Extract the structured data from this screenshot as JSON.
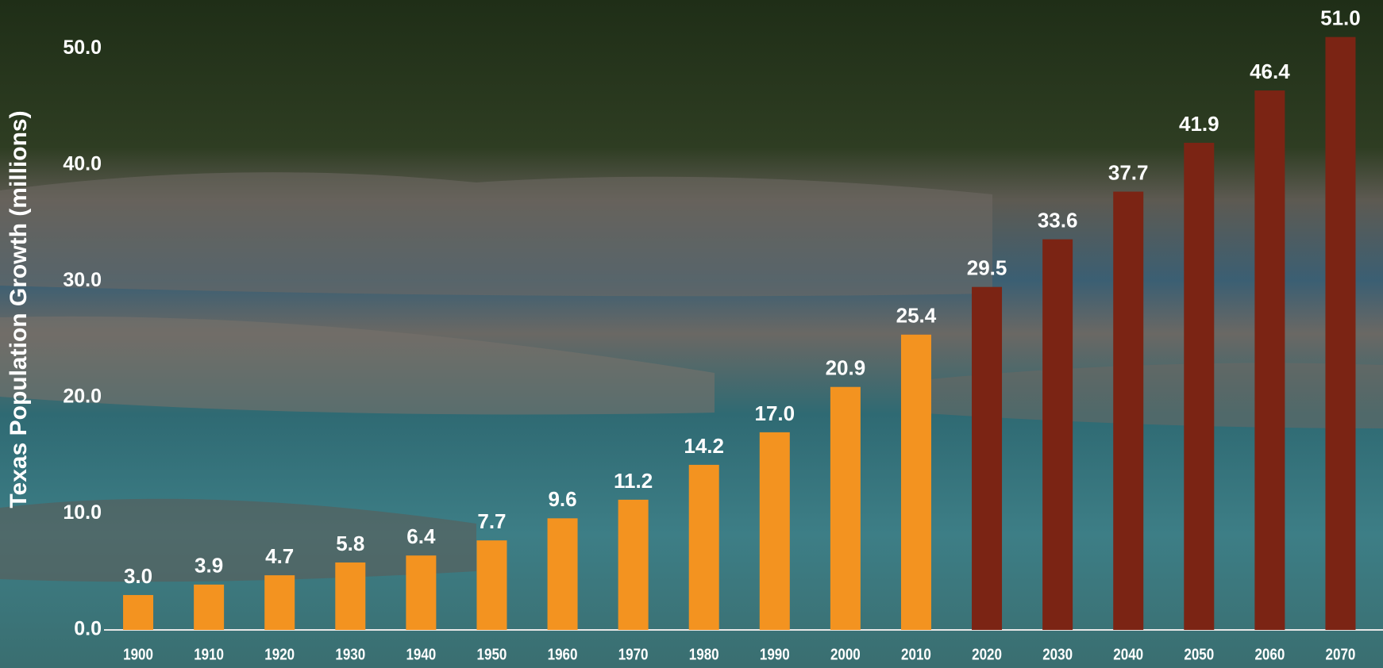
{
  "chart_data": {
    "type": "bar",
    "y_axis_label": "Texas Population Growth (millions)",
    "categories": [
      "1900",
      "1910",
      "1920",
      "1930",
      "1940",
      "1950",
      "1960",
      "1970",
      "1980",
      "1990",
      "2000",
      "2010",
      "2020",
      "2030",
      "2040",
      "2050",
      "2060",
      "2070"
    ],
    "values": [
      3.0,
      3.9,
      4.7,
      5.8,
      6.4,
      7.7,
      9.6,
      11.2,
      14.2,
      17.0,
      20.9,
      25.4,
      29.5,
      33.6,
      37.7,
      41.9,
      46.4,
      51.0
    ],
    "value_labels": [
      "3.0",
      "3.9",
      "4.7",
      "5.8",
      "6.4",
      "7.7",
      "9.6",
      "11.2",
      "14.2",
      "17.0",
      "20.9",
      "25.4",
      "29.5",
      "33.6",
      "37.7",
      "41.9",
      "46.4",
      "51.0"
    ],
    "colors": [
      "#f39320",
      "#f39320",
      "#f39320",
      "#f39320",
      "#f39320",
      "#f39320",
      "#f39320",
      "#f39320",
      "#f39320",
      "#f39320",
      "#f39320",
      "#f39320",
      "#7b2414",
      "#7b2414",
      "#7b2414",
      "#7b2414",
      "#7b2414",
      "#7b2414"
    ],
    "ylim": [
      0,
      52
    ],
    "yticks": [
      {
        "value": 0,
        "label": "0.0"
      },
      {
        "value": 10,
        "label": "10.0"
      },
      {
        "value": 20,
        "label": "20.0"
      },
      {
        "value": 30,
        "label": "30.0"
      },
      {
        "value": 40,
        "label": "40.0"
      },
      {
        "value": 50,
        "label": "50.0"
      }
    ],
    "grid": false
  }
}
